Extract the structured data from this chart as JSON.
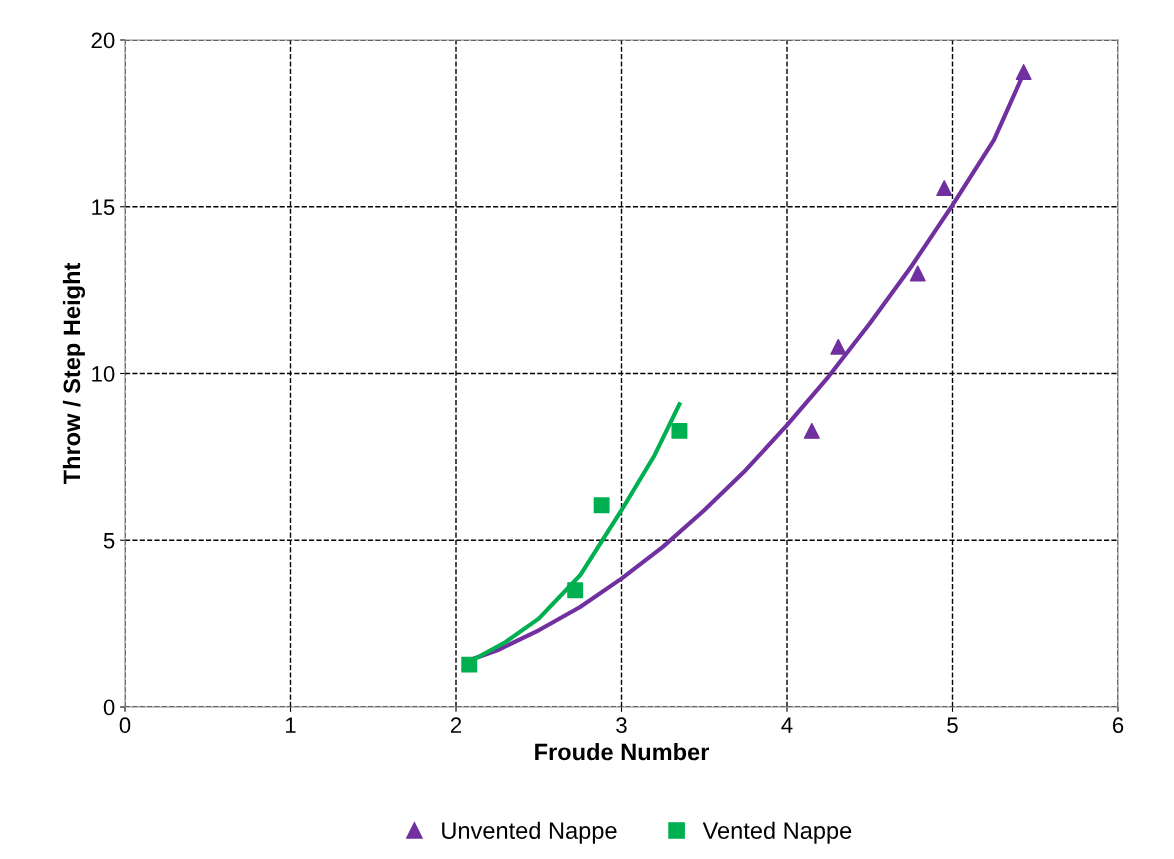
{
  "chart_data": {
    "type": "scatter",
    "xlabel": "Froude Number",
    "ylabel": "Throw / Step Height",
    "xlim": [
      0,
      6
    ],
    "ylim": [
      0,
      20
    ],
    "xticks": [
      0,
      1,
      2,
      3,
      4,
      5,
      6
    ],
    "yticks": [
      0,
      5,
      10,
      15,
      20
    ],
    "grid": true,
    "legend": "bottom",
    "series": [
      {
        "name": "Unvented Nappe",
        "marker": "triangle",
        "color": "#7030a0",
        "x": [
          4.15,
          4.31,
          4.79,
          4.95,
          5.43
        ],
        "values": [
          8.28,
          10.8,
          13.0,
          15.56,
          19.04
        ]
      },
      {
        "name": "Vented Nappe",
        "marker": "square",
        "color": "#00b050",
        "x": [
          2.08,
          2.72,
          2.88,
          3.35
        ],
        "values": [
          1.27,
          3.5,
          6.05,
          8.28
        ]
      },
      {
        "type": "line",
        "color": "#7030a0",
        "x": [
          2.08,
          2.25,
          2.5,
          2.75,
          3,
          3.25,
          3.5,
          3.75,
          4,
          4.25,
          4.5,
          4.75,
          5,
          5.25,
          5.43
        ],
        "values": [
          1.4,
          1.7,
          2.3,
          3.0,
          3.85,
          4.8,
          5.9,
          7.1,
          8.45,
          9.9,
          11.5,
          13.2,
          15.05,
          17.0,
          19.0
        ]
      },
      {
        "type": "line",
        "color": "#00b050",
        "x": [
          2.08,
          2.3,
          2.5,
          2.75,
          3,
          3.2,
          3.35
        ],
        "values": [
          1.35,
          1.95,
          2.65,
          3.95,
          5.9,
          7.55,
          9.08
        ]
      }
    ]
  }
}
